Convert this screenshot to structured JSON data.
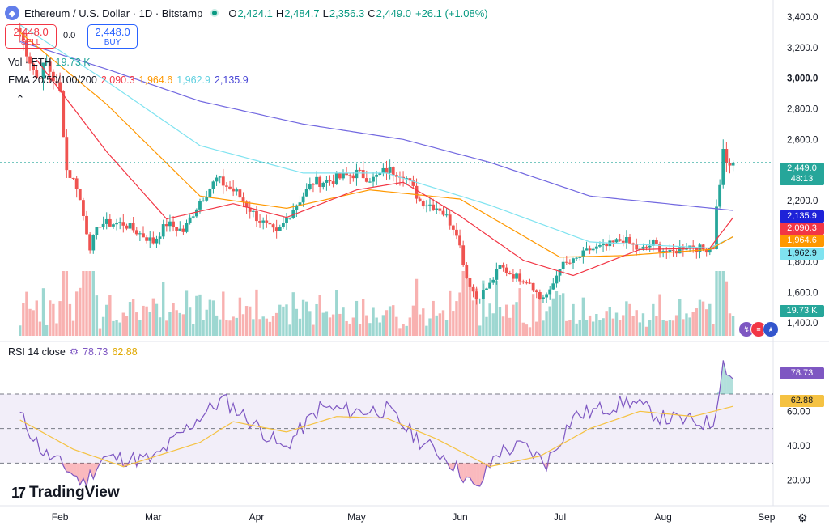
{
  "header": {
    "symbol": "Ethereum / U.S. Dollar · 1D · Bitstamp",
    "ohlc": [
      {
        "k": "O",
        "v": "2,424.1"
      },
      {
        "k": "H",
        "v": "2,484.7"
      },
      {
        "k": "L",
        "v": "2,356.3"
      },
      {
        "k": "C",
        "v": "2,449.0"
      },
      {
        "k": "",
        "v": "+26.1 (+1.08%)"
      }
    ]
  },
  "trade": {
    "sell_price": "2,448.0",
    "sell_label": "SELL",
    "spread": "0.0",
    "buy_price": "2,448.0",
    "buy_label": "BUY"
  },
  "legend": {
    "vol_label": "Vol · ETH",
    "vol_value": "19.73 K",
    "ema_label": "EMA 20/50/100/200",
    "ema_values": [
      "2,090.3",
      "1,964.6",
      "1,962.9",
      "2,135.9"
    ],
    "rsi_label": "RSI 14 close",
    "rsi_value": "78.73",
    "rsi_ma_value": "62.88"
  },
  "colors": {
    "up": "#26a69a",
    "down": "#ef5350",
    "ema20": "#f23645",
    "ema50": "#ff9800",
    "ema100": "#7fe3f0",
    "ema200": "#7268e0",
    "rsi": "#7e57c2",
    "rsi_ma": "#f5c242"
  },
  "badges": {
    "last_price": "2,449.0",
    "countdown": "48:13",
    "ema200": "2,135.9",
    "ema20": "2,090.3",
    "ema50": "1,964.6",
    "ema100": "1,962.9",
    "volume": "19.73 K",
    "rsi": "78.73",
    "rsi_ma": "62.88"
  },
  "brand": "TradingView",
  "chart_data": {
    "type": "candlestick",
    "title": "Ethereum / U.S. Dollar · 1D · Bitstamp",
    "price_axis": {
      "ticks": [
        "3,400.0",
        "3,200.0",
        "3,000.0",
        "2,800.0",
        "2,600.0",
        "2,200.0",
        "1,800.0",
        "1,600.0",
        "1,400.0"
      ],
      "ylim": [
        1300,
        3480
      ]
    },
    "x_ticks": [
      "Feb",
      "Mar",
      "Apr",
      "May",
      "Jun",
      "Jul",
      "Aug",
      "Sep"
    ],
    "ohlc_keypoints": [
      {
        "date": "2025-01-20",
        "close": 3300
      },
      {
        "date": "2025-01-25",
        "close": 3000
      },
      {
        "date": "2025-01-28",
        "close": 3100
      },
      {
        "date": "2025-02-01",
        "close": 2900
      },
      {
        "date": "2025-02-03",
        "close": 2400
      },
      {
        "date": "2025-02-06",
        "close": 2300
      },
      {
        "date": "2025-02-10",
        "close": 1900
      },
      {
        "date": "2025-02-13",
        "close": 2050
      },
      {
        "date": "2025-02-20",
        "close": 2050
      },
      {
        "date": "2025-03-01",
        "close": 1930
      },
      {
        "date": "2025-03-05",
        "close": 2050
      },
      {
        "date": "2025-03-10",
        "close": 2000
      },
      {
        "date": "2025-03-15",
        "close": 2200
      },
      {
        "date": "2025-03-20",
        "close": 2340
      },
      {
        "date": "2025-03-26",
        "close": 2250
      },
      {
        "date": "2025-04-01",
        "close": 2090
      },
      {
        "date": "2025-04-07",
        "close": 1980
      },
      {
        "date": "2025-04-12",
        "close": 2150
      },
      {
        "date": "2025-04-18",
        "close": 2320
      },
      {
        "date": "2025-04-23",
        "close": 2330
      },
      {
        "date": "2025-05-01",
        "close": 2380
      },
      {
        "date": "2025-05-06",
        "close": 2340
      },
      {
        "date": "2025-05-10",
        "close": 2400
      },
      {
        "date": "2025-05-15",
        "close": 2380
      },
      {
        "date": "2025-05-20",
        "close": 2200
      },
      {
        "date": "2025-05-26",
        "close": 2150
      },
      {
        "date": "2025-05-31",
        "close": 2000
      },
      {
        "date": "2025-06-03",
        "close": 1700
      },
      {
        "date": "2025-06-06",
        "close": 1560
      },
      {
        "date": "2025-06-10",
        "close": 1650
      },
      {
        "date": "2025-06-13",
        "close": 1770
      },
      {
        "date": "2025-06-17",
        "close": 1710
      },
      {
        "date": "2025-06-22",
        "close": 1670
      },
      {
        "date": "2025-06-25",
        "close": 1560
      },
      {
        "date": "2025-06-28",
        "close": 1600
      },
      {
        "date": "2025-07-01",
        "close": 1770
      },
      {
        "date": "2025-07-05",
        "close": 1800
      },
      {
        "date": "2025-07-10",
        "close": 1880
      },
      {
        "date": "2025-07-15",
        "close": 1900
      },
      {
        "date": "2025-07-20",
        "close": 1950
      },
      {
        "date": "2025-07-25",
        "close": 1870
      },
      {
        "date": "2025-07-29",
        "close": 1920
      },
      {
        "date": "2025-08-03",
        "close": 1850
      },
      {
        "date": "2025-08-08",
        "close": 1910
      },
      {
        "date": "2025-08-13",
        "close": 1880
      },
      {
        "date": "2025-08-16",
        "close": 1900
      },
      {
        "date": "2025-08-17",
        "close": 2150
      },
      {
        "date": "2025-08-18",
        "close": 2320
      },
      {
        "date": "2025-08-19",
        "close": 2520
      },
      {
        "date": "2025-08-21",
        "close": 2400
      },
      {
        "date": "2025-08-22",
        "close": 2449
      }
    ],
    "ema_keypoints": {
      "ema20": [
        {
          "date": "2025-01-25",
          "v": 3120
        },
        {
          "date": "2025-02-15",
          "v": 2520
        },
        {
          "date": "2025-03-05",
          "v": 2080
        },
        {
          "date": "2025-03-25",
          "v": 2180
        },
        {
          "date": "2025-04-10",
          "v": 2090
        },
        {
          "date": "2025-05-01",
          "v": 2270
        },
        {
          "date": "2025-05-15",
          "v": 2320
        },
        {
          "date": "2025-06-01",
          "v": 2100
        },
        {
          "date": "2025-06-20",
          "v": 1810
        },
        {
          "date": "2025-07-05",
          "v": 1710
        },
        {
          "date": "2025-07-25",
          "v": 1880
        },
        {
          "date": "2025-08-15",
          "v": 1890
        },
        {
          "date": "2025-08-22",
          "v": 2090
        }
      ],
      "ema50": [
        {
          "date": "2025-01-20",
          "v": 3300
        },
        {
          "date": "2025-02-15",
          "v": 2830
        },
        {
          "date": "2025-03-15",
          "v": 2230
        },
        {
          "date": "2025-04-10",
          "v": 2150
        },
        {
          "date": "2025-05-05",
          "v": 2270
        },
        {
          "date": "2025-06-01",
          "v": 2210
        },
        {
          "date": "2025-07-01",
          "v": 1830
        },
        {
          "date": "2025-07-20",
          "v": 1840
        },
        {
          "date": "2025-08-15",
          "v": 1880
        },
        {
          "date": "2025-08-22",
          "v": 1965
        }
      ],
      "ema100": [
        {
          "date": "2025-01-20",
          "v": 3350
        },
        {
          "date": "2025-02-15",
          "v": 2980
        },
        {
          "date": "2025-03-15",
          "v": 2560
        },
        {
          "date": "2025-04-15",
          "v": 2380
        },
        {
          "date": "2025-05-10",
          "v": 2380
        },
        {
          "date": "2025-06-10",
          "v": 2170
        },
        {
          "date": "2025-07-10",
          "v": 1930
        },
        {
          "date": "2025-08-15",
          "v": 1890
        },
        {
          "date": "2025-08-22",
          "v": 1963
        }
      ],
      "ema200": [
        {
          "date": "2025-01-20",
          "v": 3240
        },
        {
          "date": "2025-02-15",
          "v": 3060
        },
        {
          "date": "2025-03-15",
          "v": 2850
        },
        {
          "date": "2025-04-15",
          "v": 2700
        },
        {
          "date": "2025-05-15",
          "v": 2600
        },
        {
          "date": "2025-06-10",
          "v": 2450
        },
        {
          "date": "2025-07-10",
          "v": 2230
        },
        {
          "date": "2025-08-22",
          "v": 2136
        }
      ]
    },
    "rsi": {
      "axis_ticks": [
        "60.00",
        "40.00",
        "20.00"
      ],
      "levels": [
        70,
        50,
        30
      ],
      "ylim": [
        10,
        92
      ],
      "keypoints": [
        {
          "date": "2025-01-20",
          "v": 58
        },
        {
          "date": "2025-01-27",
          "v": 36
        },
        {
          "date": "2025-02-03",
          "v": 27
        },
        {
          "date": "2025-02-08",
          "v": 18
        },
        {
          "date": "2025-02-14",
          "v": 33
        },
        {
          "date": "2025-03-01",
          "v": 32
        },
        {
          "date": "2025-03-15",
          "v": 57
        },
        {
          "date": "2025-03-22",
          "v": 67
        },
        {
          "date": "2025-04-02",
          "v": 50
        },
        {
          "date": "2025-04-09",
          "v": 38
        },
        {
          "date": "2025-04-20",
          "v": 62
        },
        {
          "date": "2025-05-01",
          "v": 60
        },
        {
          "date": "2025-05-10",
          "v": 61
        },
        {
          "date": "2025-05-20",
          "v": 43
        },
        {
          "date": "2025-05-28",
          "v": 33
        },
        {
          "date": "2025-06-03",
          "v": 21
        },
        {
          "date": "2025-06-06",
          "v": 14
        },
        {
          "date": "2025-06-12",
          "v": 36
        },
        {
          "date": "2025-06-20",
          "v": 40
        },
        {
          "date": "2025-06-27",
          "v": 30
        },
        {
          "date": "2025-07-05",
          "v": 57
        },
        {
          "date": "2025-07-15",
          "v": 62
        },
        {
          "date": "2025-07-22",
          "v": 66
        },
        {
          "date": "2025-08-01",
          "v": 56
        },
        {
          "date": "2025-08-10",
          "v": 54
        },
        {
          "date": "2025-08-16",
          "v": 53
        },
        {
          "date": "2025-08-19",
          "v": 88
        },
        {
          "date": "2025-08-22",
          "v": 78.7
        }
      ],
      "ma_keypoints": [
        {
          "date": "2025-01-20",
          "v": 55
        },
        {
          "date": "2025-02-05",
          "v": 38
        },
        {
          "date": "2025-02-20",
          "v": 28
        },
        {
          "date": "2025-03-15",
          "v": 42
        },
        {
          "date": "2025-03-25",
          "v": 54
        },
        {
          "date": "2025-04-10",
          "v": 48
        },
        {
          "date": "2025-04-25",
          "v": 57
        },
        {
          "date": "2025-05-10",
          "v": 56
        },
        {
          "date": "2025-05-25",
          "v": 44
        },
        {
          "date": "2025-06-10",
          "v": 28
        },
        {
          "date": "2025-06-25",
          "v": 34
        },
        {
          "date": "2025-07-10",
          "v": 50
        },
        {
          "date": "2025-07-25",
          "v": 60
        },
        {
          "date": "2025-08-10",
          "v": 57
        },
        {
          "date": "2025-08-22",
          "v": 62.9
        }
      ]
    },
    "volume": {
      "last": "19.73 K"
    },
    "last_price": 2449.0
  }
}
